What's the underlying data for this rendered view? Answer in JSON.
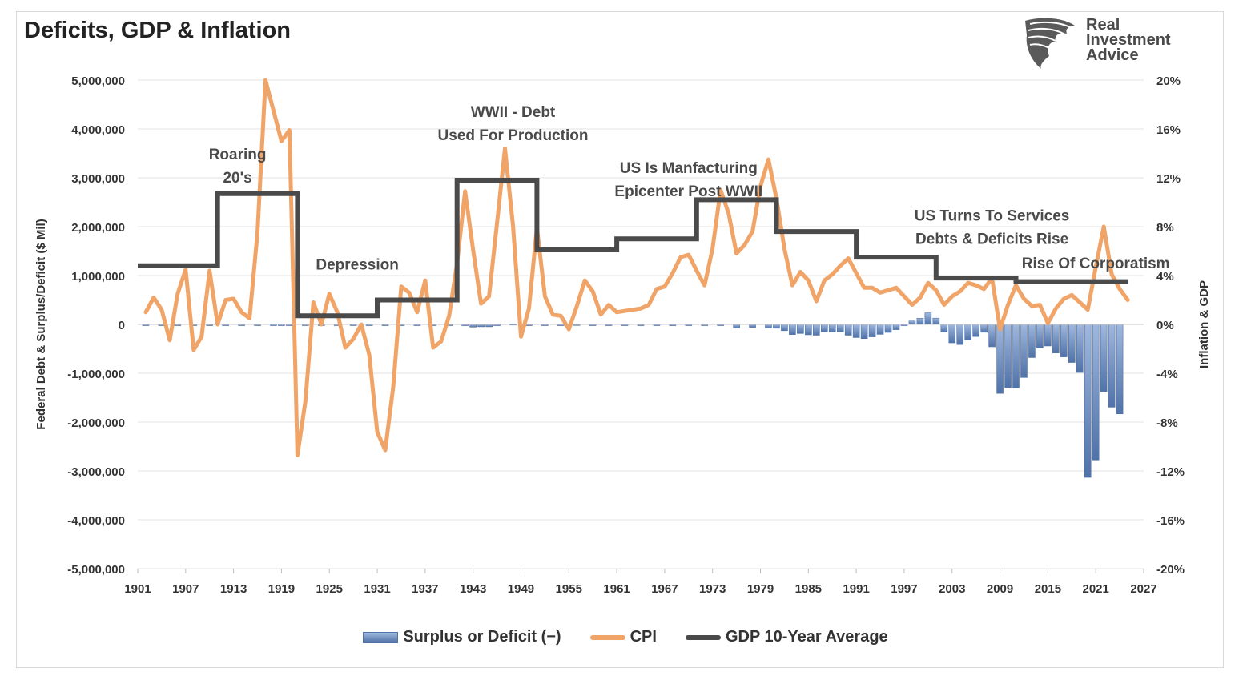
{
  "header": {
    "title": "Deficits, GDP & Inflation"
  },
  "logo": {
    "line1": "Real",
    "line2": "Investment",
    "line3": "Advice",
    "icon": "eagle-head-icon"
  },
  "colors": {
    "cpi": "#f0a468",
    "gdp": "#4a4a4a",
    "bar_top": "#9fb8de",
    "bar_bottom": "#4f72a8",
    "grid": "#e3e3e3"
  },
  "chart_data": {
    "type": "bar+line",
    "title": "Deficits, GDP & Inflation",
    "y_left": {
      "label": "Federal Debt & Surplus/Deficit ($ Mil)",
      "range": [
        -5000000,
        5000000
      ],
      "ticks": [
        "5,000,000",
        "4,000,000",
        "3,000,000",
        "2,000,000",
        "1,000,000",
        "0",
        "-1,000,000",
        "-2,000,000",
        "-3,000,000",
        "-4,000,000",
        "-5,000,000"
      ]
    },
    "y_right": {
      "label": "Inflation & GDP",
      "range": [
        -20,
        20
      ],
      "ticks": [
        "20%",
        "16%",
        "12%",
        "8%",
        "4%",
        "0%",
        "-4%",
        "-8%",
        "-12%",
        "-16%",
        "-20%"
      ]
    },
    "x": {
      "range": [
        1901,
        2027
      ],
      "ticks": [
        "1901",
        "1907",
        "1913",
        "1919",
        "1925",
        "1931",
        "1937",
        "1943",
        "1949",
        "1955",
        "1961",
        "1967",
        "1973",
        "1979",
        "1985",
        "1991",
        "1997",
        "2003",
        "2009",
        "2015",
        "2021",
        "2027"
      ]
    },
    "legend": {
      "bars": "Surplus or Deficit (−)",
      "cpi": "CPI",
      "gdp": "GDP 10-Year Average"
    },
    "annotations": [
      {
        "lines": [
          "Roaring",
          "20's"
        ],
        "year": 1913.5,
        "value": 13.5
      },
      {
        "lines": [
          "Depression"
        ],
        "year": 1928.5,
        "value": 4.5
      },
      {
        "lines": [
          "WWII - Debt",
          "Used For Production"
        ],
        "year": 1948,
        "value": 17
      },
      {
        "lines": [
          "US Is Manfacturing",
          "Epicenter Post WWII"
        ],
        "year": 1970,
        "value": 12.4
      },
      {
        "lines": [
          "US Turns To Services",
          "Debts & Deficits Rise"
        ],
        "year": 2008,
        "value": 8.5
      },
      {
        "lines": [
          "Rise Of Corporatism"
        ],
        "year": 2021,
        "value": 4.6
      }
    ],
    "series": [
      {
        "name": "CPI",
        "years": [
          1902,
          1903,
          1904,
          1905,
          1906,
          1907,
          1908,
          1909,
          1910,
          1911,
          1912,
          1913,
          1914,
          1915,
          1916,
          1917,
          1918,
          1919,
          1920,
          1921,
          1922,
          1923,
          1924,
          1925,
          1926,
          1927,
          1928,
          1929,
          1930,
          1931,
          1932,
          1933,
          1934,
          1935,
          1936,
          1937,
          1938,
          1939,
          1940,
          1941,
          1942,
          1943,
          1944,
          1945,
          1946,
          1947,
          1948,
          1949,
          1950,
          1951,
          1952,
          1953,
          1954,
          1955,
          1956,
          1957,
          1958,
          1959,
          1960,
          1961,
          1962,
          1963,
          1964,
          1965,
          1966,
          1967,
          1968,
          1969,
          1970,
          1971,
          1972,
          1973,
          1974,
          1975,
          1976,
          1977,
          1978,
          1979,
          1980,
          1981,
          1982,
          1983,
          1984,
          1985,
          1986,
          1987,
          1988,
          1989,
          1990,
          1991,
          1992,
          1993,
          1994,
          1995,
          1996,
          1997,
          1998,
          1999,
          2000,
          2001,
          2002,
          2003,
          2004,
          2005,
          2006,
          2007,
          2008,
          2009,
          2010,
          2011,
          2012,
          2013,
          2014,
          2015,
          2016,
          2017,
          2018,
          2019,
          2020,
          2021,
          2022,
          2023,
          2024,
          2025
        ],
        "values": [
          1.0,
          2.2,
          1.2,
          -1.3,
          2.5,
          4.5,
          -2.1,
          -1.0,
          4.4,
          0.0,
          2.0,
          2.1,
          1.0,
          0.5,
          7.5,
          20.0,
          17.5,
          15.0,
          15.9,
          -10.7,
          -6.3,
          1.8,
          0.0,
          2.5,
          1.0,
          -1.9,
          -1.2,
          0.0,
          -2.5,
          -8.8,
          -10.3,
          -5.1,
          3.1,
          2.6,
          1.0,
          3.6,
          -1.9,
          -1.4,
          0.7,
          5.0,
          10.9,
          6.1,
          1.7,
          2.3,
          8.3,
          14.4,
          8.1,
          -1.0,
          1.3,
          7.9,
          2.3,
          0.8,
          0.7,
          -0.4,
          1.5,
          3.6,
          2.7,
          0.8,
          1.6,
          1.0,
          1.1,
          1.2,
          1.3,
          1.6,
          2.9,
          3.1,
          4.2,
          5.5,
          5.7,
          4.4,
          3.2,
          6.2,
          11.0,
          9.1,
          5.8,
          6.5,
          7.6,
          11.3,
          13.5,
          10.3,
          6.2,
          3.2,
          4.3,
          3.6,
          1.9,
          3.6,
          4.1,
          4.8,
          5.4,
          4.2,
          3.0,
          3.0,
          2.6,
          2.8,
          3.0,
          2.3,
          1.6,
          2.2,
          3.4,
          2.8,
          1.6,
          2.3,
          2.7,
          3.4,
          3.2,
          2.9,
          3.8,
          -0.4,
          1.6,
          3.2,
          2.1,
          1.5,
          1.6,
          0.1,
          1.3,
          2.1,
          2.4,
          1.8,
          1.2,
          4.7,
          8.0,
          4.1,
          2.9,
          2.0
        ]
      },
      {
        "name": "GDP 10-Year Average",
        "steps": [
          {
            "from": 1901,
            "to": 1911,
            "value": 4.8
          },
          {
            "from": 1911,
            "to": 1921,
            "value": 10.7
          },
          {
            "from": 1921,
            "to": 1931,
            "value": 0.7
          },
          {
            "from": 1931,
            "to": 1941,
            "value": 2.0
          },
          {
            "from": 1941,
            "to": 1951,
            "value": 11.8
          },
          {
            "from": 1951,
            "to": 1961,
            "value": 6.1
          },
          {
            "from": 1961,
            "to": 1971,
            "value": 7.0
          },
          {
            "from": 1971,
            "to": 1981,
            "value": 10.2
          },
          {
            "from": 1981,
            "to": 1991,
            "value": 7.6
          },
          {
            "from": 1991,
            "to": 2001,
            "value": 5.5
          },
          {
            "from": 2001,
            "to": 2011,
            "value": 3.8
          },
          {
            "from": 2011,
            "to": 2025,
            "value": 3.5
          }
        ]
      },
      {
        "name": "Surplus or Deficit (−)",
        "years": [
          1902,
          1904,
          1906,
          1908,
          1910,
          1912,
          1914,
          1916,
          1918,
          1919,
          1920,
          1922,
          1924,
          1926,
          1928,
          1930,
          1932,
          1934,
          1936,
          1938,
          1940,
          1942,
          1943,
          1944,
          1945,
          1946,
          1948,
          1950,
          1952,
          1954,
          1956,
          1958,
          1960,
          1962,
          1964,
          1966,
          1968,
          1970,
          1972,
          1974,
          1976,
          1978,
          1980,
          1981,
          1982,
          1983,
          1984,
          1985,
          1986,
          1987,
          1988,
          1989,
          1990,
          1991,
          1992,
          1993,
          1994,
          1995,
          1996,
          1997,
          1998,
          1999,
          2000,
          2001,
          2002,
          2003,
          2004,
          2005,
          2006,
          2007,
          2008,
          2009,
          2010,
          2011,
          2012,
          2013,
          2014,
          2015,
          2016,
          2017,
          2018,
          2019,
          2020,
          2021,
          2022,
          2023,
          2024
        ],
        "values": [
          0,
          -500,
          0,
          -2000,
          0,
          0,
          0,
          -9000,
          -13000,
          -13000,
          300,
          900,
          500,
          900,
          700,
          -500,
          -2700,
          -3600,
          -4400,
          -100,
          -2900,
          -20500,
          -54600,
          -47600,
          -47600,
          -15900,
          11800,
          -3100,
          -1500,
          -1200,
          3900,
          -2800,
          300,
          -7100,
          -5900,
          -3700,
          -25200,
          -2800,
          -23400,
          -6100,
          -73700,
          -59200,
          -73800,
          -79000,
          -128000,
          -207800,
          -185400,
          -212300,
          -221200,
          -149700,
          -155200,
          -152600,
          -221000,
          -269200,
          -290300,
          -255100,
          -203200,
          -164000,
          -107400,
          -21900,
          69300,
          125600,
          236200,
          128200,
          -157800,
          -377600,
          -412700,
          -318300,
          -248200,
          -160700,
          -458600,
          -1412700,
          -1294400,
          -1299600,
          -1087000,
          -679800,
          -484800,
          -441900,
          -584700,
          -665400,
          -779100,
          -983600,
          -3132000,
          -2775000,
          -1376000,
          -1695000,
          -1832000
        ]
      }
    ]
  }
}
